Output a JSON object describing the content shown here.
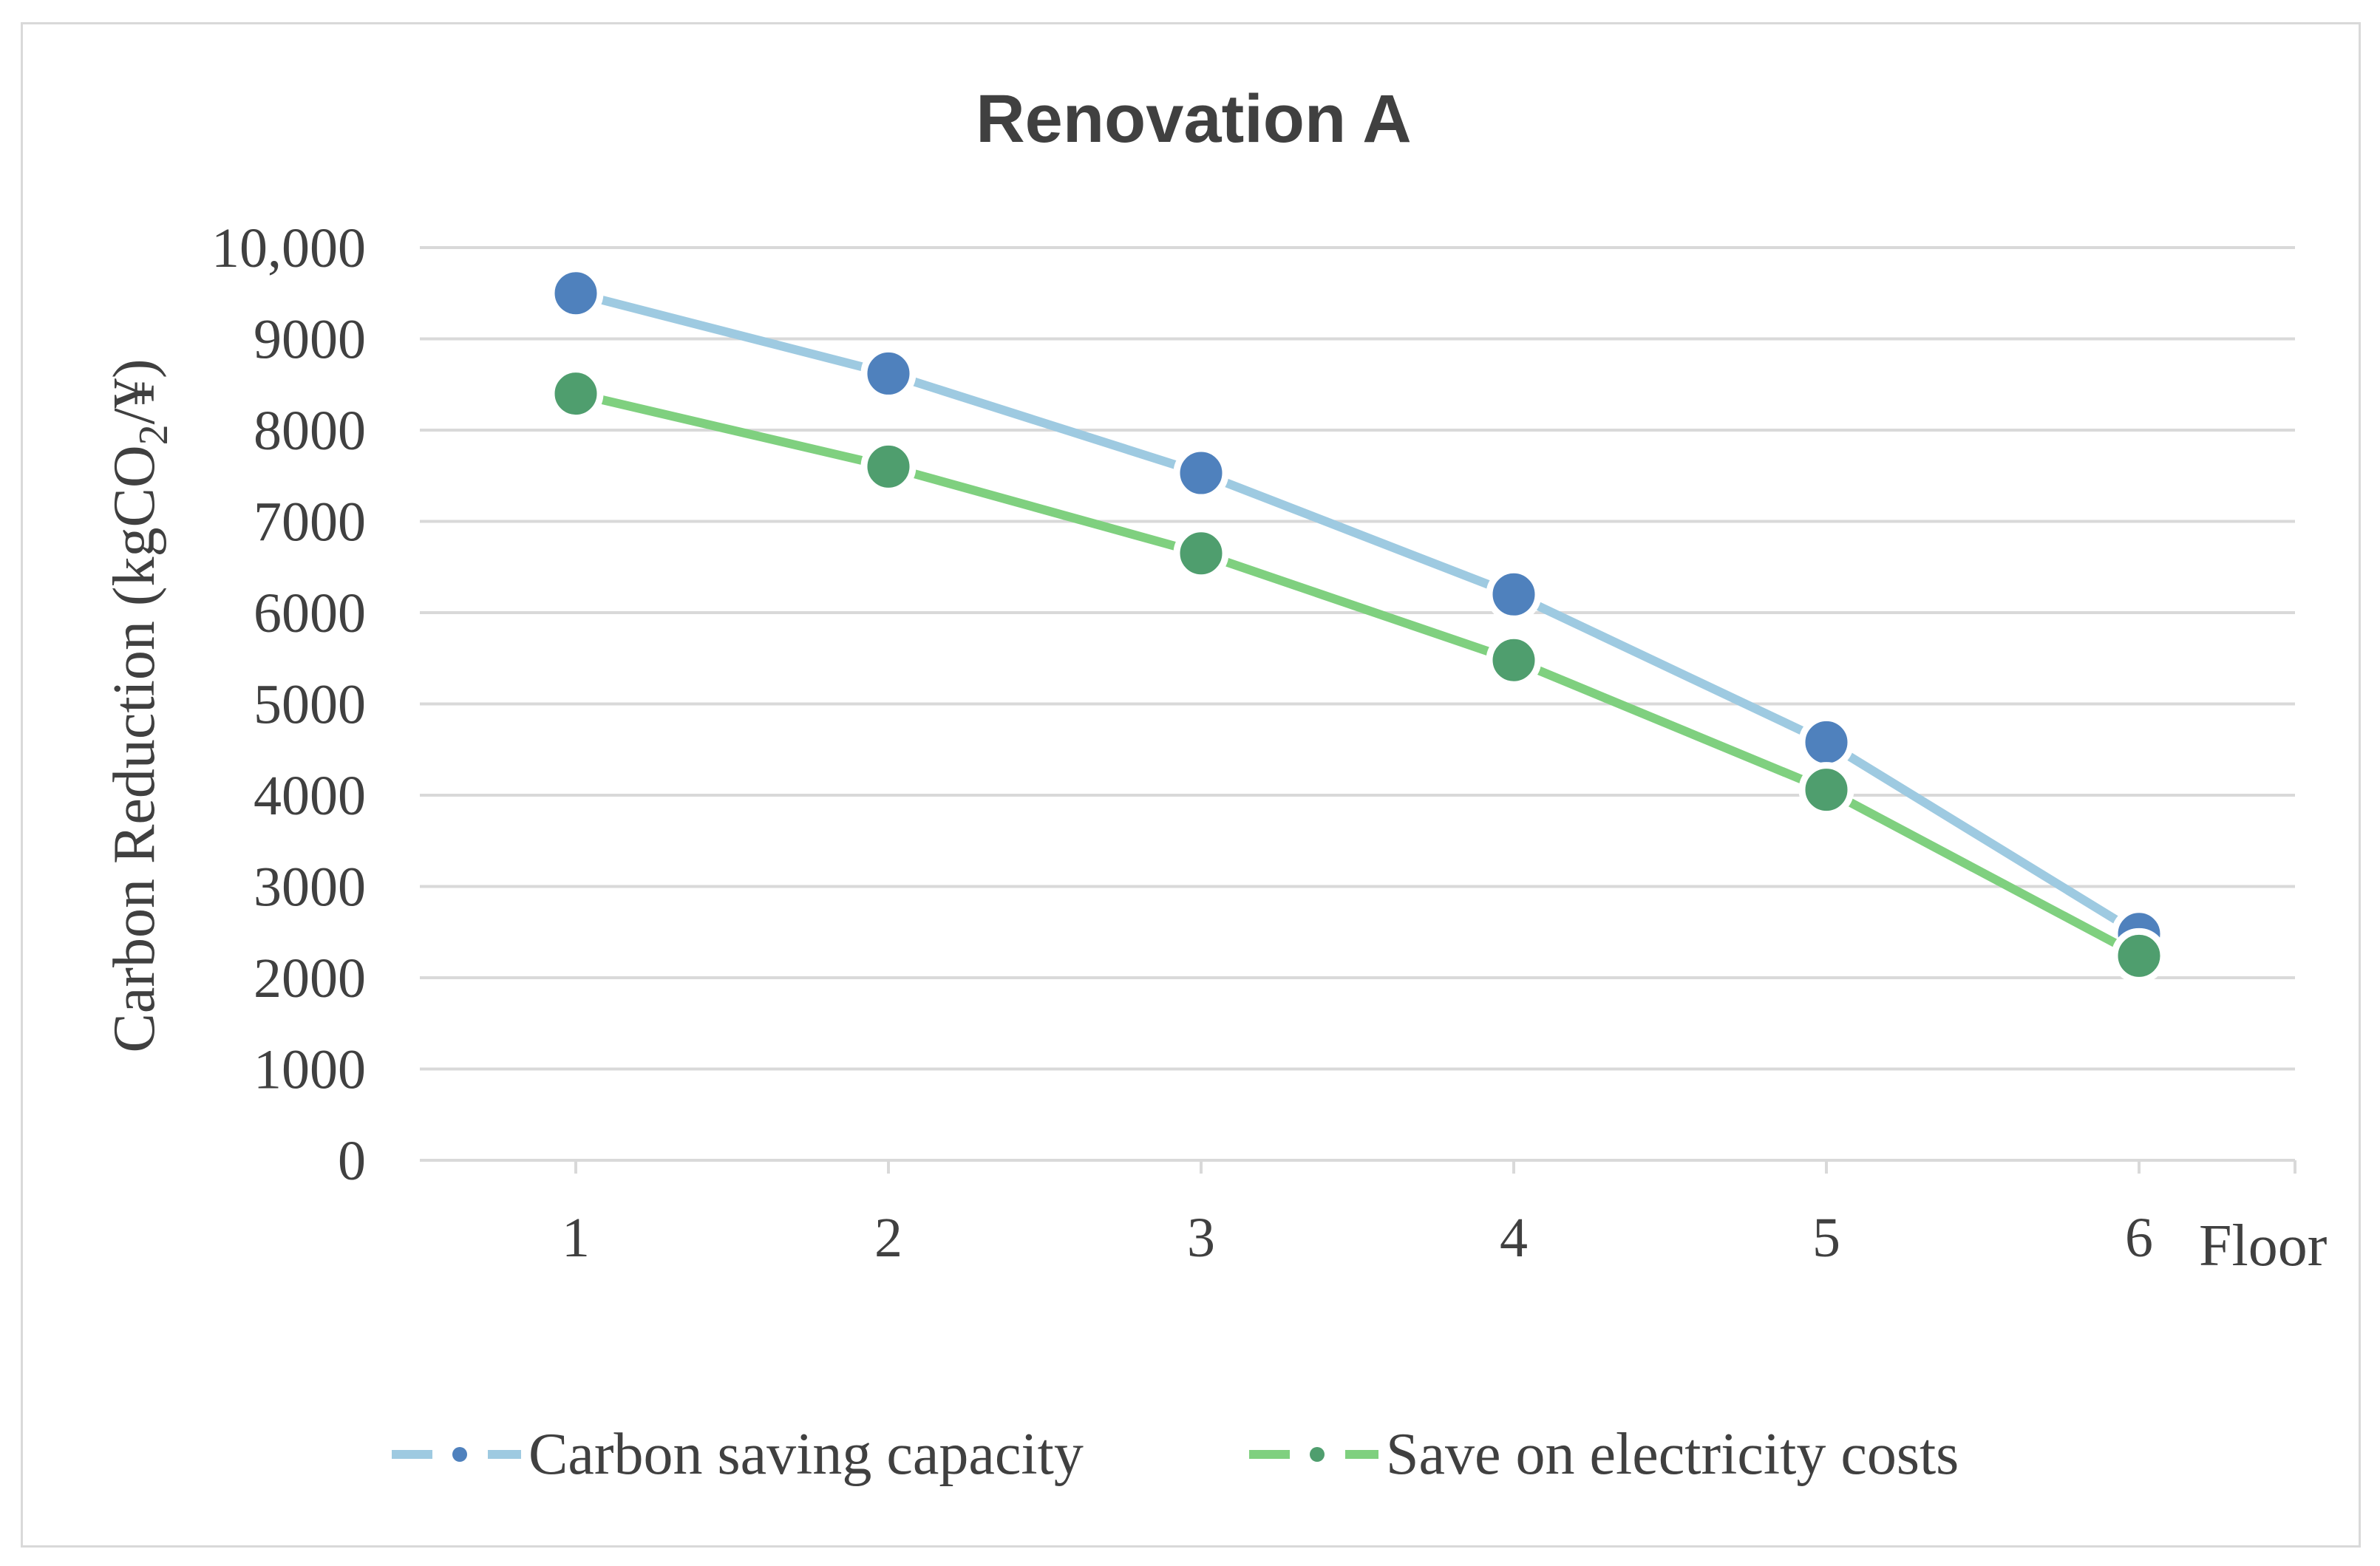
{
  "chart_data": {
    "type": "line",
    "title": "Renovation A",
    "xlabel": "Floor",
    "ylabel": "Carbon Reduction (kgCO",
    "ylabel_subscript": "2",
    "ylabel_suffix": "/¥)",
    "categories": [
      "1",
      "2",
      "3",
      "4",
      "5",
      "6"
    ],
    "y_ticks": [
      "0",
      "1000",
      "2000",
      "3000",
      "4000",
      "5000",
      "6000",
      "7000",
      "8000",
      "9000",
      "10,000"
    ],
    "ylim": [
      0,
      10000
    ],
    "grid": true,
    "legend_position": "bottom",
    "series": [
      {
        "name": "Carbon saving capacity",
        "values": [
          9500,
          8620,
          7530,
          6200,
          4580,
          2480
        ],
        "line_color": "#9ecae1",
        "marker_color": "#4f81bd"
      },
      {
        "name": "Save on electricity costs",
        "values": [
          8400,
          7600,
          6650,
          5480,
          4060,
          2240
        ],
        "line_color": "#7fd07f",
        "marker_color": "#4f9e6e"
      }
    ]
  }
}
